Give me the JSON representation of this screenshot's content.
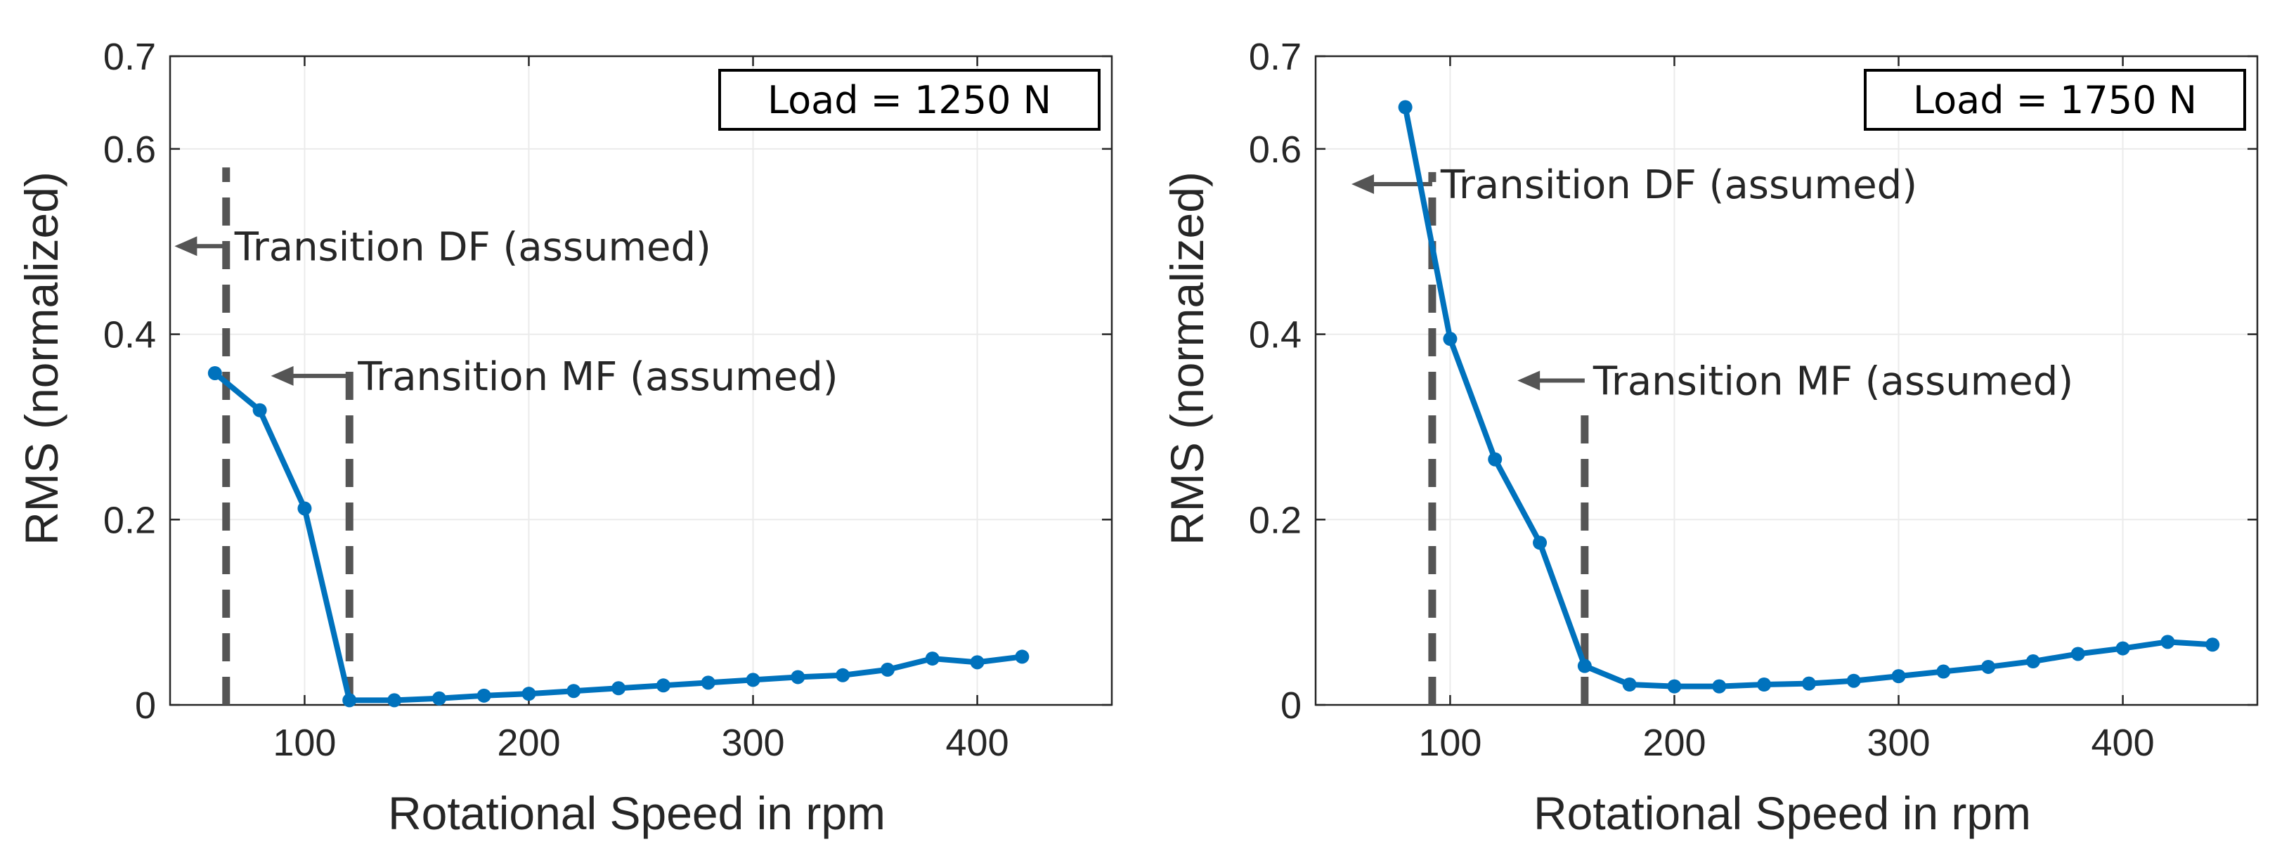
{
  "colors": {
    "series": "#0072BD",
    "grid": "#EBEBEB",
    "axes": "#262626",
    "marker_line": "#555555"
  },
  "chart_data": [
    {
      "type": "line",
      "title": "",
      "xlabel": "Rotational Speed in rpm",
      "ylabel": "RMS (normalized)",
      "xlim": [
        40,
        460
      ],
      "ylim": [
        0,
        0.7
      ],
      "xticks": [
        100,
        200,
        300,
        400
      ],
      "xtick_labels": [
        "100",
        "200",
        "300",
        "400"
      ],
      "yticks": [
        0,
        0.2,
        0.4,
        0.6,
        0.7
      ],
      "ytick_labels": [
        "0",
        "0.2",
        "0.4",
        "0.6",
        "0.7"
      ],
      "grid": true,
      "legend_label": "Load = 1250 N",
      "legend_position": "top-right",
      "series": [
        {
          "name": "RMS",
          "x": [
            60,
            80,
            100,
            120,
            140,
            160,
            180,
            200,
            220,
            240,
            260,
            280,
            300,
            320,
            340,
            360,
            380,
            400,
            420
          ],
          "y": [
            0.358,
            0.318,
            0.212,
            0.005,
            0.005,
            0.007,
            0.01,
            0.012,
            0.015,
            0.018,
            0.021,
            0.024,
            0.027,
            0.03,
            0.032,
            0.038,
            0.05,
            0.046,
            0.052
          ]
        }
      ],
      "annotations": [
        {
          "text": "Transition DF (assumed)",
          "x": 65,
          "y_range": [
            0,
            0.58
          ],
          "arrow_from_x": 65,
          "arrow_to_x": 42,
          "arrow_y": 0.495
        },
        {
          "text": "Transition MF (assumed)",
          "x": 120,
          "y_range": [
            0,
            0.36
          ],
          "arrow_from_x": 120,
          "arrow_to_x": 85,
          "arrow_y": 0.355
        }
      ]
    },
    {
      "type": "line",
      "title": "",
      "xlabel": "Rotational Speed in rpm",
      "ylabel": "RMS (normalized)",
      "xlim": [
        40,
        460
      ],
      "ylim": [
        0,
        0.7
      ],
      "xticks": [
        100,
        200,
        300,
        400
      ],
      "xtick_labels": [
        "100",
        "200",
        "300",
        "400"
      ],
      "yticks": [
        0,
        0.2,
        0.4,
        0.6,
        0.7
      ],
      "ytick_labels": [
        "0",
        "0.2",
        "0.4",
        "0.6",
        "0.7"
      ],
      "grid": true,
      "legend_label": "Load = 1750 N",
      "legend_position": "top-right",
      "series": [
        {
          "name": "RMS",
          "x": [
            80,
            100,
            120,
            140,
            160,
            180,
            200,
            220,
            240,
            260,
            280,
            300,
            320,
            340,
            360,
            380,
            400,
            420,
            440
          ],
          "y": [
            0.645,
            0.395,
            0.265,
            0.175,
            0.042,
            0.022,
            0.02,
            0.02,
            0.022,
            0.023,
            0.026,
            0.031,
            0.036,
            0.041,
            0.047,
            0.055,
            0.061,
            0.068,
            0.065
          ]
        }
      ],
      "annotations": [
        {
          "text": "Transition DF (assumed)",
          "x": 92,
          "y_range": [
            0,
            0.575
          ],
          "arrow_from_x": 92,
          "arrow_to_x": 56,
          "arrow_y": 0.562
        },
        {
          "text": "Transition MF (assumed)",
          "x": 160,
          "y_range": [
            0,
            0.32
          ],
          "arrow_from_x": 160,
          "arrow_to_x": 130,
          "arrow_y": 0.35
        }
      ]
    }
  ]
}
